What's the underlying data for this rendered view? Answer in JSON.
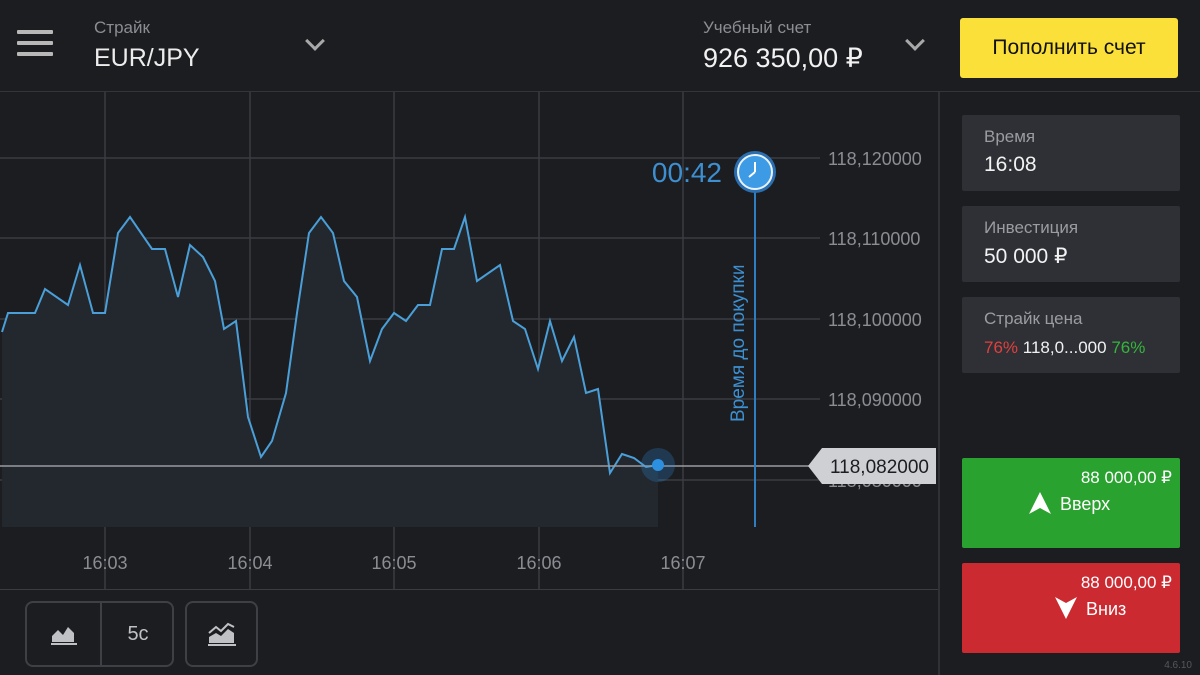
{
  "header": {
    "asset_label": "Страйк",
    "asset_value": "EUR/JPY",
    "account_label": "Учебный счет",
    "account_balance": "926 350,00 ₽",
    "deposit_button": "Пополнить счет"
  },
  "chart": {
    "timer": "00:42",
    "purchase_deadline_label": "Время до покупки",
    "current_price": "118,082000",
    "y_ticks": [
      "118,120000",
      "118,110000",
      "118,100000",
      "118,090000",
      "118,080000"
    ],
    "x_ticks": [
      "16:03",
      "16:04",
      "16:05",
      "16:06",
      "16:07"
    ],
    "colors": {
      "line": "#4a9fd8",
      "fill": "#22262c",
      "grid": "#3a3c42",
      "marker": "#2d8fe0"
    }
  },
  "toolbar": {
    "chart_type_icon": "area-chart-icon",
    "timeframe_label": "5с",
    "indicators_icon": "indicators-chart-icon"
  },
  "panel": {
    "time_label": "Время",
    "time_value": "16:08",
    "investment_label": "Инвестиция",
    "investment_value": "50 000 ₽",
    "strike_label": "Страйк цена",
    "strike_left_pct": "76%",
    "strike_value": "118,0...000",
    "strike_right_pct": "76%",
    "up_amount": "88 000,00 ₽",
    "up_label": "Вверх",
    "down_amount": "88 000,00 ₽",
    "down_label": "Вниз",
    "up_color": "#2aa22f",
    "down_color": "#cc2a31",
    "version": "4.6.10"
  }
}
